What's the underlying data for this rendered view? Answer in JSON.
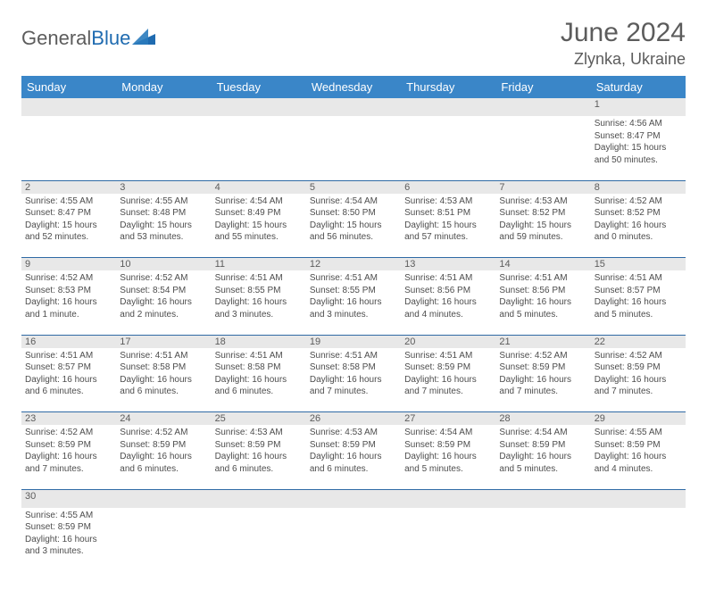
{
  "brand": {
    "part1": "General",
    "part2": "Blue"
  },
  "title": "June 2024",
  "location": "Zlynka, Ukraine",
  "colors": {
    "header_bg": "#3a86c8",
    "header_text": "#ffffff",
    "daynum_bg": "#e8e8e8",
    "text_gray": "#5c5c5c",
    "cell_text": "#4d4d4d",
    "row_border": "#2f6aa5",
    "logo_blue": "#1f6bb0"
  },
  "headers": [
    "Sunday",
    "Monday",
    "Tuesday",
    "Wednesday",
    "Thursday",
    "Friday",
    "Saturday"
  ],
  "weeks": [
    [
      null,
      null,
      null,
      null,
      null,
      null,
      {
        "n": "1",
        "sunrise": "4:56 AM",
        "sunset": "8:47 PM",
        "daylight": "15 hours and 50 minutes."
      }
    ],
    [
      {
        "n": "2",
        "sunrise": "4:55 AM",
        "sunset": "8:47 PM",
        "daylight": "15 hours and 52 minutes."
      },
      {
        "n": "3",
        "sunrise": "4:55 AM",
        "sunset": "8:48 PM",
        "daylight": "15 hours and 53 minutes."
      },
      {
        "n": "4",
        "sunrise": "4:54 AM",
        "sunset": "8:49 PM",
        "daylight": "15 hours and 55 minutes."
      },
      {
        "n": "5",
        "sunrise": "4:54 AM",
        "sunset": "8:50 PM",
        "daylight": "15 hours and 56 minutes."
      },
      {
        "n": "6",
        "sunrise": "4:53 AM",
        "sunset": "8:51 PM",
        "daylight": "15 hours and 57 minutes."
      },
      {
        "n": "7",
        "sunrise": "4:53 AM",
        "sunset": "8:52 PM",
        "daylight": "15 hours and 59 minutes."
      },
      {
        "n": "8",
        "sunrise": "4:52 AM",
        "sunset": "8:52 PM",
        "daylight": "16 hours and 0 minutes."
      }
    ],
    [
      {
        "n": "9",
        "sunrise": "4:52 AM",
        "sunset": "8:53 PM",
        "daylight": "16 hours and 1 minute."
      },
      {
        "n": "10",
        "sunrise": "4:52 AM",
        "sunset": "8:54 PM",
        "daylight": "16 hours and 2 minutes."
      },
      {
        "n": "11",
        "sunrise": "4:51 AM",
        "sunset": "8:55 PM",
        "daylight": "16 hours and 3 minutes."
      },
      {
        "n": "12",
        "sunrise": "4:51 AM",
        "sunset": "8:55 PM",
        "daylight": "16 hours and 3 minutes."
      },
      {
        "n": "13",
        "sunrise": "4:51 AM",
        "sunset": "8:56 PM",
        "daylight": "16 hours and 4 minutes."
      },
      {
        "n": "14",
        "sunrise": "4:51 AM",
        "sunset": "8:56 PM",
        "daylight": "16 hours and 5 minutes."
      },
      {
        "n": "15",
        "sunrise": "4:51 AM",
        "sunset": "8:57 PM",
        "daylight": "16 hours and 5 minutes."
      }
    ],
    [
      {
        "n": "16",
        "sunrise": "4:51 AM",
        "sunset": "8:57 PM",
        "daylight": "16 hours and 6 minutes."
      },
      {
        "n": "17",
        "sunrise": "4:51 AM",
        "sunset": "8:58 PM",
        "daylight": "16 hours and 6 minutes."
      },
      {
        "n": "18",
        "sunrise": "4:51 AM",
        "sunset": "8:58 PM",
        "daylight": "16 hours and 6 minutes."
      },
      {
        "n": "19",
        "sunrise": "4:51 AM",
        "sunset": "8:58 PM",
        "daylight": "16 hours and 7 minutes."
      },
      {
        "n": "20",
        "sunrise": "4:51 AM",
        "sunset": "8:59 PM",
        "daylight": "16 hours and 7 minutes."
      },
      {
        "n": "21",
        "sunrise": "4:52 AM",
        "sunset": "8:59 PM",
        "daylight": "16 hours and 7 minutes."
      },
      {
        "n": "22",
        "sunrise": "4:52 AM",
        "sunset": "8:59 PM",
        "daylight": "16 hours and 7 minutes."
      }
    ],
    [
      {
        "n": "23",
        "sunrise": "4:52 AM",
        "sunset": "8:59 PM",
        "daylight": "16 hours and 7 minutes."
      },
      {
        "n": "24",
        "sunrise": "4:52 AM",
        "sunset": "8:59 PM",
        "daylight": "16 hours and 6 minutes."
      },
      {
        "n": "25",
        "sunrise": "4:53 AM",
        "sunset": "8:59 PM",
        "daylight": "16 hours and 6 minutes."
      },
      {
        "n": "26",
        "sunrise": "4:53 AM",
        "sunset": "8:59 PM",
        "daylight": "16 hours and 6 minutes."
      },
      {
        "n": "27",
        "sunrise": "4:54 AM",
        "sunset": "8:59 PM",
        "daylight": "16 hours and 5 minutes."
      },
      {
        "n": "28",
        "sunrise": "4:54 AM",
        "sunset": "8:59 PM",
        "daylight": "16 hours and 5 minutes."
      },
      {
        "n": "29",
        "sunrise": "4:55 AM",
        "sunset": "8:59 PM",
        "daylight": "16 hours and 4 minutes."
      }
    ],
    [
      {
        "n": "30",
        "sunrise": "4:55 AM",
        "sunset": "8:59 PM",
        "daylight": "16 hours and 3 minutes."
      },
      null,
      null,
      null,
      null,
      null,
      null
    ]
  ],
  "labels": {
    "sunrise": "Sunrise:",
    "sunset": "Sunset:",
    "daylight": "Daylight:"
  }
}
